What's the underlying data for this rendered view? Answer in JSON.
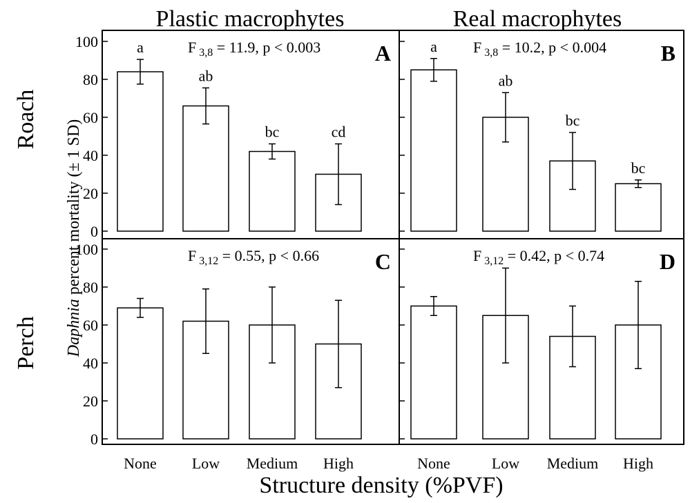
{
  "colors": {
    "ink": "#000000",
    "bar_fill": "#ffffff",
    "background": "#ffffff"
  },
  "labels": {
    "col_left": "Plastic macrophytes",
    "col_right": "Real macrophytes",
    "row_top": "Roach",
    "row_bottom": "Perch",
    "ylabel_italic": "Daphnia",
    "ylabel_rest": " percent mortality (± 1 SD)",
    "xlabel": "Structure density (%PVF)"
  },
  "chart_data": [
    {
      "type": "bar",
      "panel": "A",
      "row": "Roach",
      "column": "Plastic macrophytes",
      "categories": [
        "None",
        "Low",
        "Medium",
        "High"
      ],
      "values": [
        84,
        66,
        42,
        30
      ],
      "errors": [
        6.5,
        9.5,
        4,
        16
      ],
      "significance_letters": [
        "a",
        "ab",
        "bc",
        "cd"
      ],
      "stat": {
        "F": "F",
        "df": "3,8",
        "rest": " = 11.9, p < 0.003"
      },
      "ylim": [
        0,
        100
      ],
      "yticks": [
        "0",
        "20",
        "40",
        "60",
        "80",
        "100"
      ]
    },
    {
      "type": "bar",
      "panel": "B",
      "row": "Roach",
      "column": "Real macrophytes",
      "categories": [
        "None",
        "Low",
        "Medium",
        "High"
      ],
      "values": [
        85,
        60,
        37,
        25
      ],
      "errors": [
        6,
        13,
        15,
        2
      ],
      "significance_letters": [
        "a",
        "ab",
        "bc",
        "bc"
      ],
      "stat": {
        "F": "F",
        "df": "3,8",
        "rest": " = 10.2, p < 0.004"
      },
      "ylim": [
        0,
        100
      ],
      "yticks": [
        "0",
        "20",
        "40",
        "60",
        "80",
        "100"
      ]
    },
    {
      "type": "bar",
      "panel": "C",
      "row": "Perch",
      "column": "Plastic macrophytes",
      "categories": [
        "None",
        "Low",
        "Medium",
        "High"
      ],
      "values": [
        69,
        62,
        60,
        50
      ],
      "errors": [
        5,
        17,
        20,
        23
      ],
      "significance_letters": [],
      "stat": {
        "F": "F",
        "df": "3,12",
        "rest": " = 0.55, p < 0.66"
      },
      "ylim": [
        0,
        100
      ],
      "yticks": [
        "0",
        "20",
        "40",
        "60",
        "80",
        "100"
      ]
    },
    {
      "type": "bar",
      "panel": "D",
      "row": "Perch",
      "column": "Real macrophytes",
      "categories": [
        "None",
        "Low",
        "Medium",
        "High"
      ],
      "values": [
        70,
        65,
        54,
        60
      ],
      "errors": [
        5,
        25,
        16,
        23
      ],
      "significance_letters": [],
      "stat": {
        "F": "F",
        "df": "3,12",
        "rest": " = 0.42, p < 0.74"
      },
      "ylim": [
        0,
        100
      ],
      "yticks": [
        "0",
        "20",
        "40",
        "60",
        "80",
        "100"
      ]
    }
  ]
}
